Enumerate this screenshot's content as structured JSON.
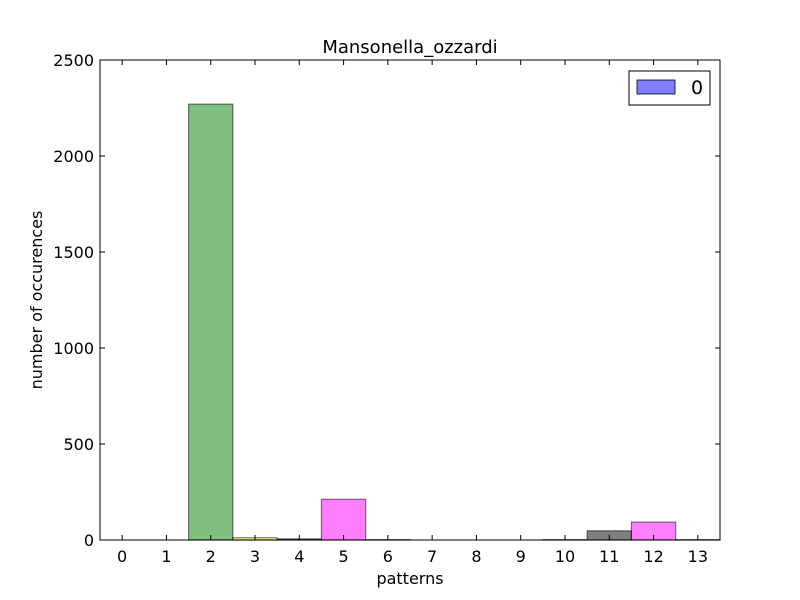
{
  "chart_data": {
    "type": "bar",
    "title": "Mansonella_ozzardi",
    "xlabel": "patterns",
    "ylabel": "number of occurences",
    "categories": [
      "0",
      "1",
      "2",
      "3",
      "4",
      "5",
      "6",
      "7",
      "8",
      "9",
      "10",
      "11",
      "12",
      "13"
    ],
    "values": [
      0,
      0,
      2270,
      12,
      6,
      212,
      2,
      0,
      0,
      0,
      2,
      48,
      93,
      2
    ],
    "bar_colors": [
      "#0000ff",
      "#0000ff",
      "#008000",
      "#ffff00",
      "#000000",
      "#ff00ff",
      "#000000",
      "#0000ff",
      "#0000ff",
      "#0000ff",
      "#808000",
      "#000000",
      "#ff00ff",
      "#000000"
    ],
    "bar_alpha": 0.5,
    "ylim": [
      0,
      2500
    ],
    "yticks": [
      0,
      500,
      1000,
      1500,
      2000,
      2500
    ],
    "grid": false,
    "legend": {
      "position": "top-right",
      "entries": [
        {
          "label": "0",
          "color": "#0000ff"
        }
      ]
    }
  }
}
